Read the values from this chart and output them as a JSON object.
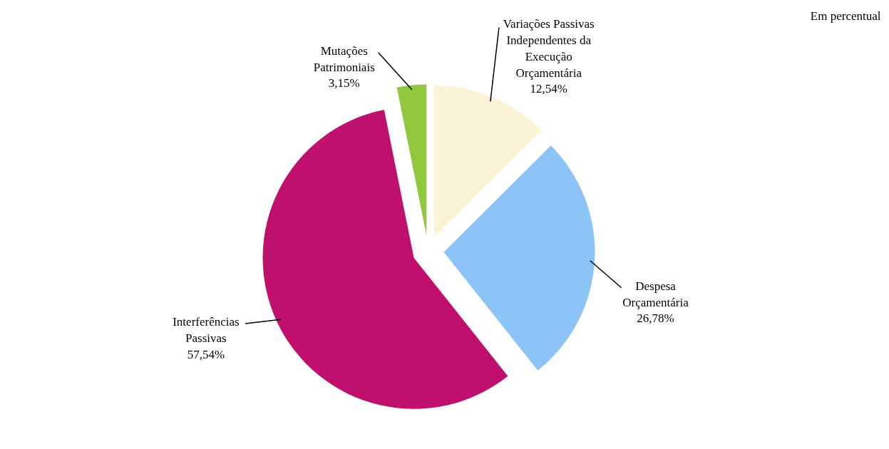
{
  "chart_data": {
    "type": "pie",
    "categories": [
      "Variações Passivas Independentes da Execução Orçamentária",
      "Despesa Orçamentária",
      "Interferências Passivas",
      "Mutações Patrimoniais"
    ],
    "values": [
      12.54,
      26.78,
      57.54,
      3.15
    ],
    "colors": [
      "#fbf3d5",
      "#8cc4f7",
      "#c0106e",
      "#92c83e"
    ],
    "value_labels": [
      "12,54%",
      "26,78%",
      "57,54%",
      "3,15%"
    ],
    "annotations": [
      "Em percentual"
    ]
  }
}
